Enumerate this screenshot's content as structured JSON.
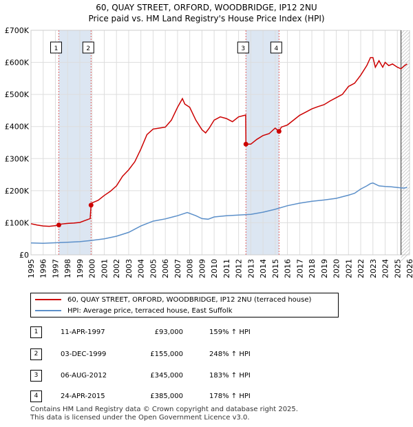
{
  "title_line1": "60, QUAY STREET, ORFORD, WOODBRIDGE, IP12 2NU",
  "title_line2": "Price paid vs. HM Land Registry's House Price Index (HPI)",
  "colors": {
    "property": "#cc0000",
    "hpi": "#5b8fc9",
    "grid": "#dddddd",
    "highlight": "#dce6f2",
    "marker_line": "#e06060"
  },
  "chart_data": {
    "type": "line",
    "title": "Price paid vs. HM Land Registry's House Price Index (HPI)",
    "xlabel": "",
    "ylabel": "",
    "xlim": [
      1995,
      2026
    ],
    "ylim": [
      0,
      700000
    ],
    "y_ticks": [
      0,
      100000,
      200000,
      300000,
      400000,
      500000,
      600000,
      700000
    ],
    "y_tick_labels": [
      "£0",
      "£100K",
      "£200K",
      "£300K",
      "£400K",
      "£500K",
      "£600K",
      "£700K"
    ],
    "x_ticks": [
      1995,
      1996,
      1997,
      1998,
      1999,
      2000,
      2001,
      2002,
      2003,
      2004,
      2005,
      2006,
      2007,
      2008,
      2009,
      2010,
      2011,
      2012,
      2013,
      2014,
      2015,
      2016,
      2017,
      2018,
      2019,
      2020,
      2021,
      2022,
      2023,
      2024,
      2025,
      2026
    ],
    "x_tick_labels": [
      "1995",
      "1996",
      "1997",
      "1998",
      "1999",
      "2000",
      "2001",
      "2002",
      "2003",
      "2004",
      "2005",
      "2006",
      "2007",
      "2008",
      "2009",
      "2010",
      "2011",
      "2012",
      "2013",
      "2014",
      "2015",
      "2016",
      "2017",
      "2018",
      "2019",
      "2020",
      "2021",
      "2022",
      "2023",
      "2024",
      "2025",
      "2026"
    ],
    "forecast_from": 2025.3,
    "series": [
      {
        "name": "60, QUAY STREET, ORFORD, WOODBRIDGE, IP12 2NU (terraced house)",
        "color": "#cc0000",
        "x": [
          1995.0,
          1995.5,
          1996.0,
          1996.5,
          1997.0,
          1997.28,
          1997.5,
          1998.0,
          1998.5,
          1999.0,
          1999.5,
          1999.85,
          1999.92,
          2000.0,
          2000.5,
          2001.0,
          2001.5,
          2002.0,
          2002.5,
          2003.0,
          2003.5,
          2004.0,
          2004.5,
          2005.0,
          2005.5,
          2006.0,
          2006.5,
          2007.0,
          2007.4,
          2007.6,
          2008.0,
          2008.5,
          2009.0,
          2009.3,
          2009.6,
          2010.0,
          2010.5,
          2011.0,
          2011.5,
          2012.0,
          2012.5,
          2012.58,
          2012.6,
          2013.0,
          2013.5,
          2014.0,
          2014.5,
          2015.0,
          2015.31,
          2015.5,
          2016.0,
          2016.5,
          2017.0,
          2017.5,
          2018.0,
          2018.5,
          2019.0,
          2019.5,
          2020.0,
          2020.5,
          2021.0,
          2021.5,
          2022.0,
          2022.5,
          2022.8,
          2023.0,
          2023.2,
          2023.5,
          2023.8,
          2024.0,
          2024.3,
          2024.6,
          2025.0,
          2025.3,
          2025.6,
          2025.8
        ],
        "values": [
          97000,
          93000,
          90000,
          89000,
          91000,
          93000,
          96000,
          98000,
          99000,
          101000,
          108000,
          113000,
          155000,
          162000,
          170000,
          185000,
          198000,
          215000,
          245000,
          265000,
          290000,
          330000,
          375000,
          392000,
          395000,
          398000,
          420000,
          460000,
          487000,
          470000,
          460000,
          420000,
          390000,
          380000,
          395000,
          420000,
          430000,
          425000,
          415000,
          430000,
          435000,
          436000,
          345000,
          345000,
          360000,
          372000,
          378000,
          395000,
          385000,
          398000,
          405000,
          420000,
          435000,
          445000,
          455000,
          462000,
          468000,
          480000,
          490000,
          500000,
          525000,
          535000,
          560000,
          590000,
          615000,
          615000,
          585000,
          605000,
          585000,
          600000,
          590000,
          595000,
          585000,
          580000,
          590000,
          595000
        ]
      },
      {
        "name": "HPI: Average price, terraced house, East Suffolk",
        "color": "#5b8fc9",
        "x": [
          1995.0,
          1996.0,
          1997.0,
          1998.0,
          1999.0,
          2000.0,
          2001.0,
          2002.0,
          2003.0,
          2004.0,
          2005.0,
          2006.0,
          2007.0,
          2007.8,
          2008.5,
          2009.0,
          2009.5,
          2010.0,
          2011.0,
          2012.0,
          2013.0,
          2014.0,
          2015.0,
          2016.0,
          2017.0,
          2018.0,
          2019.0,
          2020.0,
          2021.0,
          2021.5,
          2022.0,
          2022.5,
          2022.8,
          2023.0,
          2023.5,
          2024.0,
          2024.5,
          2025.0,
          2025.5,
          2025.8
        ],
        "values": [
          37000,
          36000,
          37500,
          39000,
          41000,
          45000,
          50000,
          58000,
          70000,
          90000,
          105000,
          112000,
          122000,
          132000,
          122000,
          113000,
          111000,
          118000,
          122000,
          124000,
          126000,
          133000,
          142000,
          153000,
          161000,
          167000,
          171000,
          176000,
          186000,
          192000,
          205000,
          215000,
          222000,
          224000,
          215000,
          213000,
          212000,
          210000,
          208000,
          210000
        ]
      }
    ],
    "sales": [
      {
        "label": "1",
        "date": "11-APR-1997",
        "x": 1997.28,
        "price": 93000,
        "price_text": "£93,000",
        "hpi_text": "159% ↑ HPI"
      },
      {
        "label": "2",
        "date": "03-DEC-1999",
        "x": 1999.92,
        "price": 155000,
        "price_text": "£155,000",
        "hpi_text": "248% ↑ HPI"
      },
      {
        "label": "3",
        "date": "06-AUG-2012",
        "x": 2012.6,
        "price": 345000,
        "price_text": "£345,000",
        "hpi_text": "183% ↑ HPI"
      },
      {
        "label": "4",
        "date": "24-APR-2015",
        "x": 2015.31,
        "price": 385000,
        "price_text": "£385,000",
        "hpi_text": "178% ↑ HPI"
      }
    ]
  },
  "legend": {
    "property_label": "60, QUAY STREET, ORFORD, WOODBRIDGE, IP12 2NU (terraced house)",
    "hpi_label": "HPI: Average price, terraced house, East Suffolk"
  },
  "footer": {
    "line1": "Contains HM Land Registry data © Crown copyright and database right 2025.",
    "line2": "This data is licensed under the Open Government Licence v3.0."
  }
}
